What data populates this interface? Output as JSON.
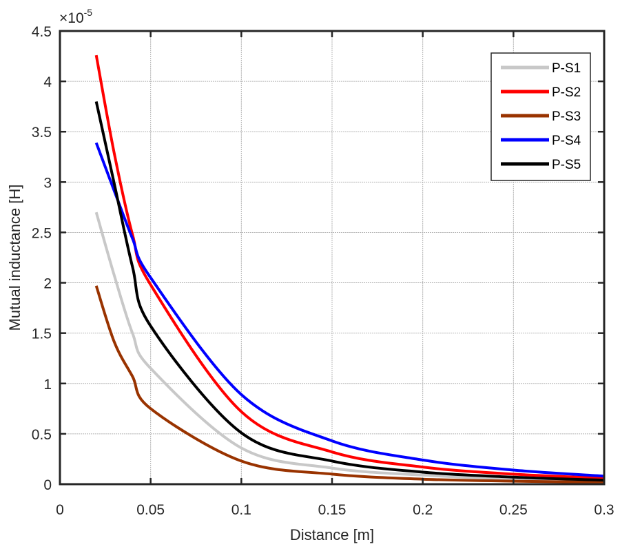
{
  "chart_data": {
    "type": "line",
    "title": "",
    "xlabel": "Distance [m]",
    "ylabel": "Mutual inductance [H]",
    "y_multiplier": {
      "base": "×10",
      "exponent": "-5"
    },
    "xlim": [
      0,
      0.3
    ],
    "ylim": [
      0,
      4.5
    ],
    "grid": true,
    "legend_position": "top-right",
    "x_ticks": [
      0,
      0.05,
      0.1,
      0.15,
      0.2,
      0.25,
      0.3
    ],
    "x_tick_labels": [
      "0",
      "0.05",
      "0.1",
      "0.15",
      "0.2",
      "0.25",
      "0.3"
    ],
    "y_ticks": [
      0,
      0.5,
      1,
      1.5,
      2,
      2.5,
      3,
      3.5,
      4,
      4.5
    ],
    "y_tick_labels": [
      "0",
      "0.5",
      "1",
      "1.5",
      "2",
      "2.5",
      "3",
      "3.5",
      "4",
      "4.5"
    ],
    "x": [
      0.02,
      0.03,
      0.04,
      0.05,
      0.1,
      0.15,
      0.2,
      0.25,
      0.3
    ],
    "series": [
      {
        "name": "P-S1",
        "color": "#c8c8c8",
        "values": [
          2.7,
          2.07,
          1.5,
          1.15,
          0.36,
          0.16,
          0.09,
          0.05,
          0.03
        ]
      },
      {
        "name": "P-S2",
        "color": "#ff0000",
        "values": [
          4.26,
          3.28,
          2.48,
          1.98,
          0.72,
          0.32,
          0.17,
          0.1,
          0.06
        ]
      },
      {
        "name": "P-S3",
        "color": "#993300",
        "values": [
          1.97,
          1.41,
          1.07,
          0.75,
          0.23,
          0.1,
          0.05,
          0.03,
          0.02
        ]
      },
      {
        "name": "P-S4",
        "color": "#0000ff",
        "values": [
          3.39,
          2.91,
          2.44,
          2.05,
          0.89,
          0.43,
          0.24,
          0.14,
          0.08
        ]
      },
      {
        "name": "P-S5",
        "color": "#000000",
        "values": [
          3.8,
          2.98,
          2.16,
          1.57,
          0.51,
          0.23,
          0.12,
          0.07,
          0.04
        ]
      }
    ]
  }
}
